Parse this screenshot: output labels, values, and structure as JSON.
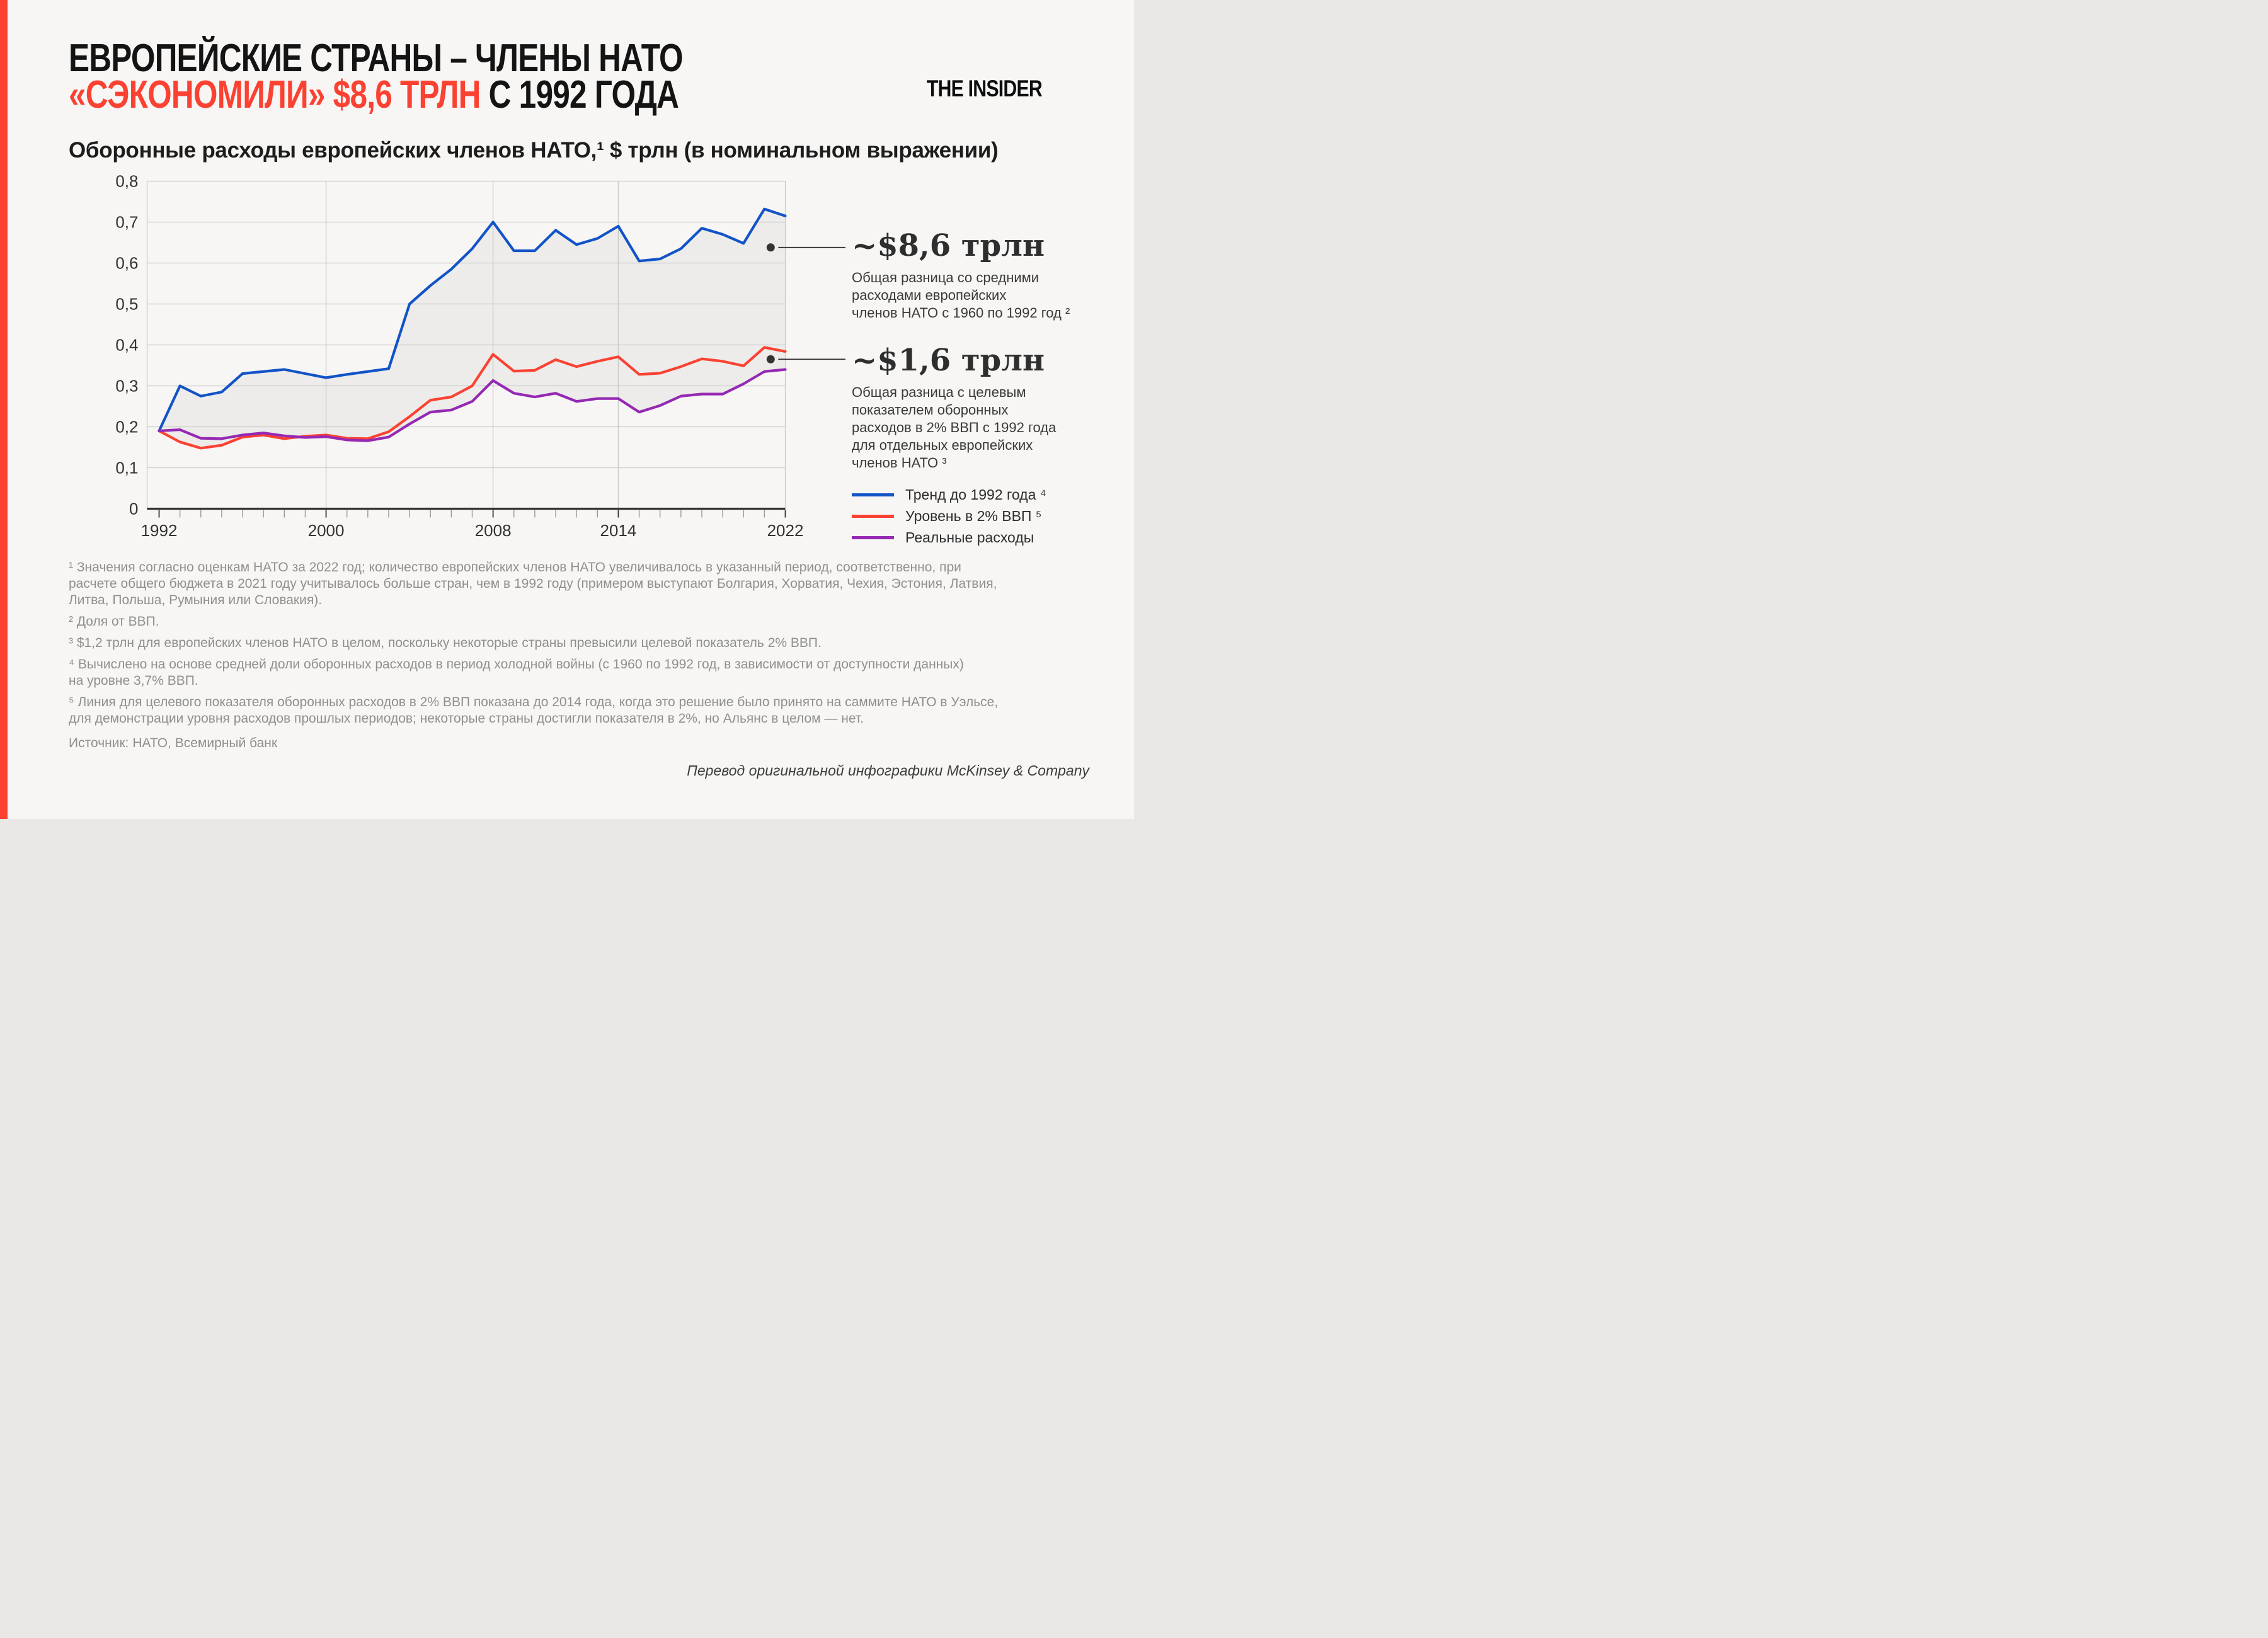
{
  "page": {
    "background": "#f7f6f4",
    "accent_color": "#fb4232"
  },
  "header": {
    "title_line1": "ЕВРОПЕЙСКИЕ СТРАНЫ – ЧЛЕНЫ НАТО",
    "title_line2_highlight": "«СЭКОНОМИЛИ» $8,6 ТРЛН",
    "title_line2_rest": " С 1992 ГОДА",
    "logo": "THE INSIDER"
  },
  "chart": {
    "subtitle": "Оборонные расходы европейских членов НАТО,¹ $ трлн (в номинальном выражении)"
  },
  "chart_data": {
    "type": "line",
    "title": "Оборонные расходы европейских членов НАТО, $ трлн (в номинальном выражении)",
    "xlabel": "",
    "ylabel": "$ трлн",
    "xlim": [
      1992,
      2022
    ],
    "ylim": [
      0,
      0.8
    ],
    "grid": true,
    "x": [
      1992,
      1993,
      1994,
      1995,
      1996,
      1997,
      1998,
      1999,
      2000,
      2001,
      2002,
      2003,
      2004,
      2005,
      2006,
      2007,
      2008,
      2009,
      2010,
      2011,
      2012,
      2013,
      2014,
      2015,
      2016,
      2017,
      2018,
      2019,
      2020,
      2021,
      2022
    ],
    "series": [
      {
        "name": "Тренд до 1992 года⁴",
        "color": "#1254c8",
        "values": [
          0.19,
          0.3,
          0.275,
          0.285,
          0.33,
          0.335,
          0.34,
          0.33,
          0.32,
          0.328,
          0.335,
          0.342,
          0.5,
          0.545,
          0.585,
          0.635,
          0.7,
          0.63,
          0.63,
          0.68,
          0.645,
          0.66,
          0.69,
          0.605,
          0.61,
          0.635,
          0.685,
          0.67,
          0.648,
          0.732,
          0.715
        ]
      },
      {
        "name": "Уровень в 2% ВВП⁵",
        "color": "#fb4232",
        "values": [
          0.19,
          0.163,
          0.148,
          0.155,
          0.175,
          0.18,
          0.171,
          0.177,
          0.18,
          0.172,
          0.171,
          0.188,
          0.225,
          0.265,
          0.273,
          0.3,
          0.377,
          0.336,
          0.338,
          0.364,
          0.347,
          0.36,
          0.371,
          0.328,
          0.331,
          0.347,
          0.366,
          0.36,
          0.349,
          0.394,
          0.384
        ]
      },
      {
        "name": "Реальные расходы",
        "color": "#9529b3",
        "values": [
          0.19,
          0.193,
          0.172,
          0.171,
          0.18,
          0.185,
          0.178,
          0.174,
          0.176,
          0.168,
          0.166,
          0.175,
          0.207,
          0.236,
          0.241,
          0.262,
          0.313,
          0.282,
          0.273,
          0.282,
          0.262,
          0.269,
          0.269,
          0.236,
          0.252,
          0.275,
          0.28,
          0.28,
          0.305,
          0.335,
          0.34
        ]
      }
    ],
    "y_ticks": [
      "0",
      "0,1",
      "0,2",
      "0,3",
      "0,4",
      "0,5",
      "0,6",
      "0,7",
      "0,8"
    ],
    "x_ticks": [
      {
        "year": 1992,
        "label": "1992"
      },
      {
        "year": 2000,
        "label": "2000"
      },
      {
        "year": 2008,
        "label": "2008"
      },
      {
        "year": 2014,
        "label": "2014"
      },
      {
        "year": 2022,
        "label": "2022"
      }
    ],
    "fill_between": "серая заливка между линией тренда и фактическими расходами",
    "legend_position": "right"
  },
  "annotations": [
    {
      "value": "~$8,6 трлн",
      "text": "Общая разница со средними\nрасходами европейских\nчленов НАТО с 1960 по 1992 год ²"
    },
    {
      "value": "~$1,6 трлн",
      "text": "Общая разница с целевым\nпоказателем оборонных\nрасходов в 2% ВВП с 1992 года\nдля отдельных европейских\nчленов НАТО ³"
    }
  ],
  "legend": [
    {
      "label": "Тренд до 1992 года ⁴",
      "color": "#1254c8"
    },
    {
      "label": "Уровень в 2% ВВП ⁵",
      "color": "#fb4232"
    },
    {
      "label": "Реальные расходы",
      "color": "#9529b3"
    }
  ],
  "footnotes": [
    "¹ Значения согласно оценкам НАТО за 2022 год; количество европейских членов НАТО увеличивалось в указанный период, соответственно, при\nрасчете общего бюджета в 2021 году учитывалось больше стран, чем в 1992 году (примером выступают Болгария, Хорватия, Чехия, Эстония, Латвия,\nЛитва, Польша, Румыния или Словакия).",
    "² Доля от ВВП.",
    "³ $1,2 трлн для европейских членов НАТО в целом, поскольку некоторые страны превысили целевой показатель 2% ВВП.",
    "⁴ Вычислено на основе средней доли оборонных расходов в период холодной войны (с 1960 по 1992 год, в зависимости от доступности данных)\nна уровне 3,7% ВВП.",
    "⁵ Линия для целевого показателя оборонных расходов в 2% ВВП показана до 2014 года, когда это решение было принято на саммите НАТО в Уэльсе,\nдля демонстрации уровня расходов прошлых периодов; некоторые страны достигли показателя в 2%, но Альянс в целом — нет."
  ],
  "source": "Источник: НАТО, Всемирный банк",
  "credit": "Перевод оригинальной инфографики McKinsey & Company"
}
